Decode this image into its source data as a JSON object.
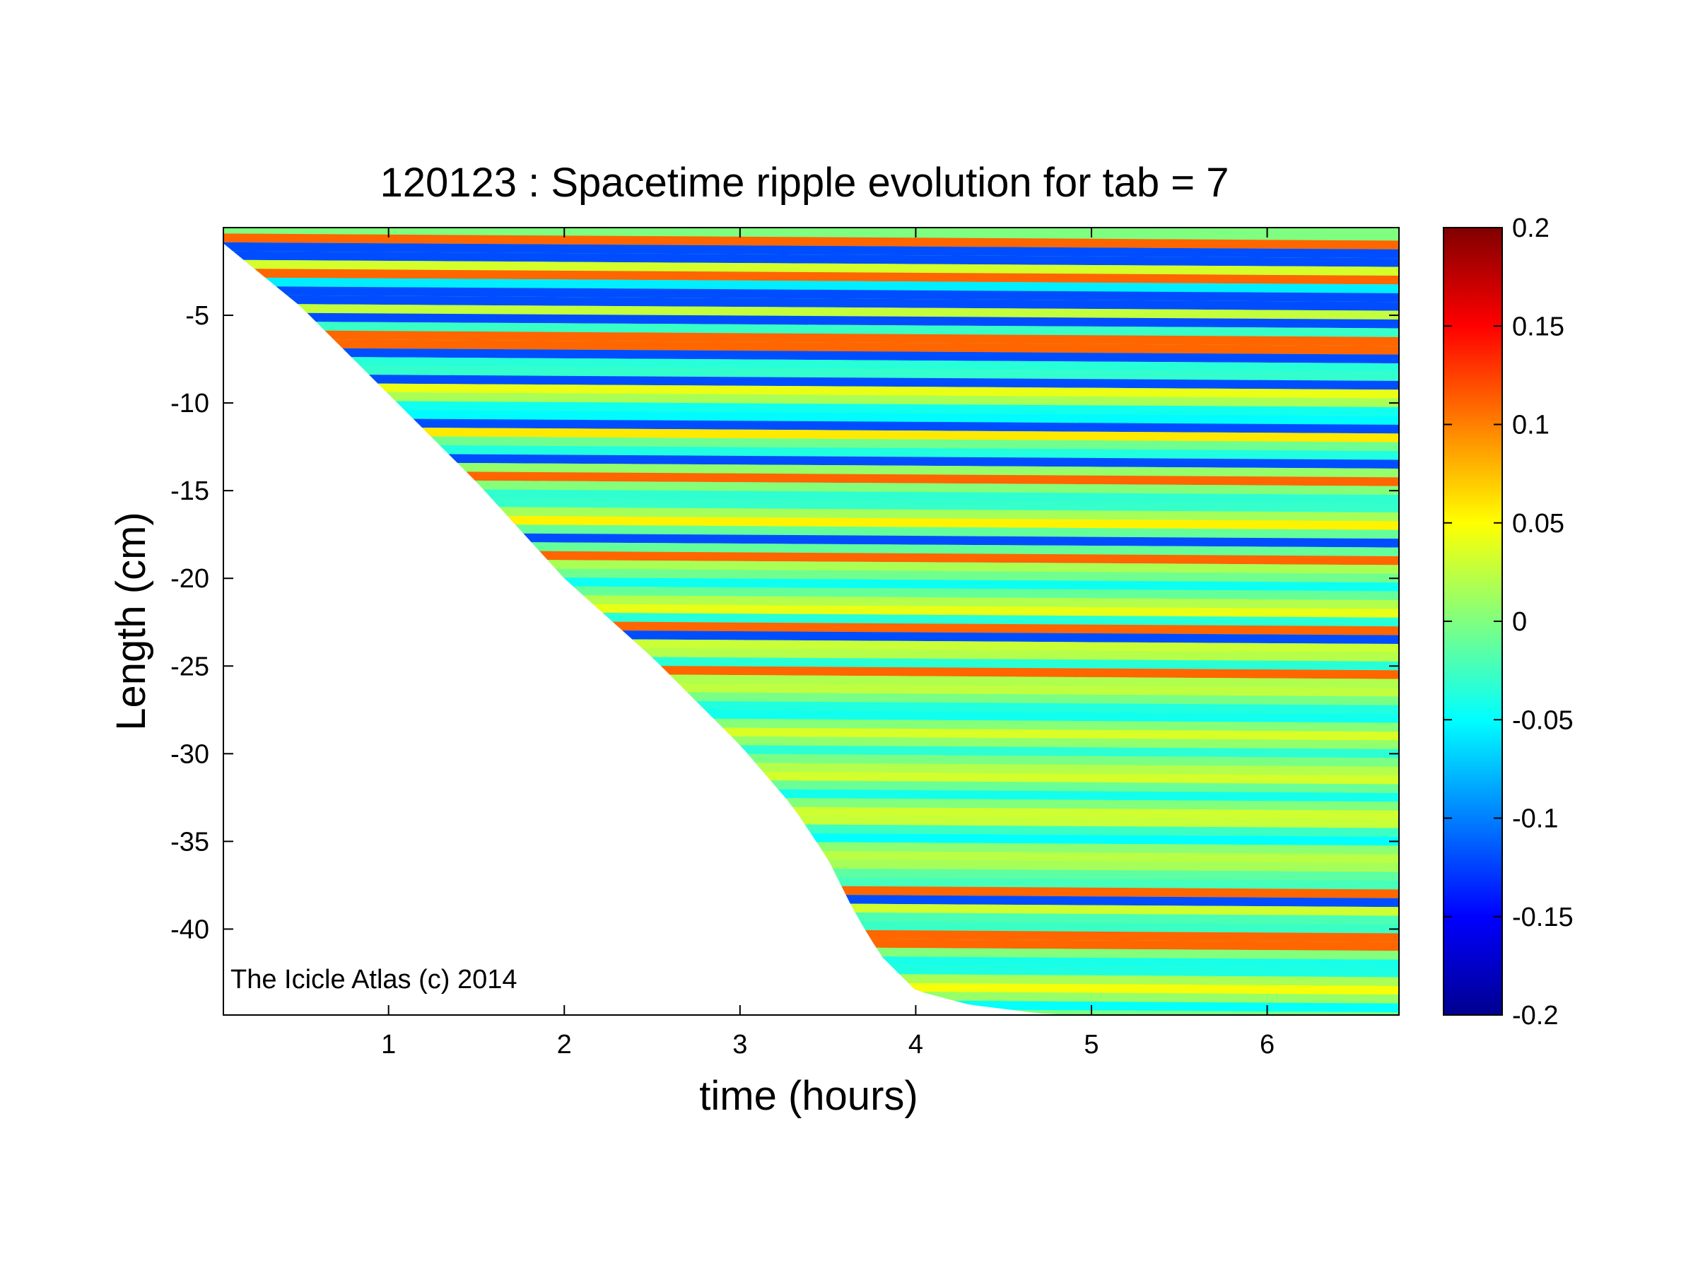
{
  "chart_data": {
    "type": "heatmap",
    "title": "120123 : Spacetime ripple evolution for tab = 7",
    "xlabel": "time (hours)",
    "ylabel": "Length (cm)",
    "xlim": [
      0.06,
      6.75
    ],
    "ylim": [
      -44.9,
      0
    ],
    "xticks": [
      1,
      2,
      3,
      4,
      5,
      6
    ],
    "yticks": [
      -5,
      -10,
      -15,
      -20,
      -25,
      -30,
      -35,
      -40
    ],
    "grid": false,
    "colorbar": {
      "colormap": "jet",
      "range": [
        -0.2,
        0.2
      ],
      "ticks": [
        0.2,
        0.15,
        0.1,
        0.05,
        0,
        -0.05,
        -0.1,
        -0.15,
        -0.2
      ]
    },
    "growth_front": {
      "description": "icicle tip position vs time (data exist only above this front)",
      "t": [
        0.06,
        0.5,
        1.0,
        1.5,
        2.0,
        2.5,
        3.0,
        3.3,
        3.5,
        3.65,
        3.8,
        4.0,
        4.3,
        4.7,
        4.9
      ],
      "length": [
        -0.9,
        -4.5,
        -9.5,
        -14.5,
        -20.0,
        -24.5,
        -29.5,
        -33.0,
        -36.0,
        -39.0,
        -41.5,
        -43.5,
        -44.3,
        -44.8,
        -44.9
      ]
    },
    "ridges": [
      {
        "length": -0.5,
        "sign": "positive"
      },
      {
        "length": -1.0,
        "sign": "negative"
      },
      {
        "length": -1.7,
        "sign": "negative"
      },
      {
        "length": -2.6,
        "sign": "positive"
      },
      {
        "length": -3.8,
        "sign": "negative"
      },
      {
        "length": -5.0,
        "sign": "negative"
      },
      {
        "length": -6.2,
        "sign": "positive"
      },
      {
        "length": -7.0,
        "sign": "negative"
      },
      {
        "length": -8.5,
        "sign": "negative"
      },
      {
        "length": -11.0,
        "sign": "negative"
      },
      {
        "length": -13.2,
        "sign": "negative"
      },
      {
        "length": -13.8,
        "sign": "positive"
      },
      {
        "length": -17.5,
        "sign": "negative"
      },
      {
        "length": -18.3,
        "sign": "positive"
      },
      {
        "length": -22.5,
        "sign": "positive"
      },
      {
        "length": -23.0,
        "sign": "negative"
      },
      {
        "length": -25.0,
        "sign": "positive"
      },
      {
        "length": -37.5,
        "sign": "positive"
      },
      {
        "length": -38.0,
        "sign": "negative"
      },
      {
        "length": -40.2,
        "sign": "positive"
      }
    ]
  },
  "watermark": "The Icicle Atlas (c) 2014"
}
